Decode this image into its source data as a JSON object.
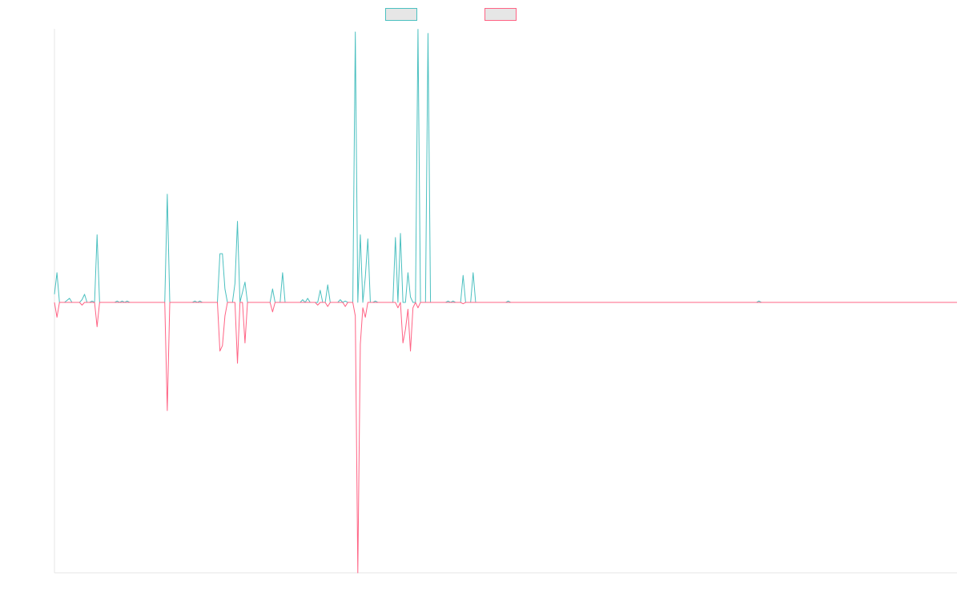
{
  "chart_data": {
    "type": "line",
    "title": "",
    "xlabel": "",
    "ylabel": "",
    "ylim": [
      -1,
      1
    ],
    "xlim": [
      0,
      360
    ],
    "grid": false,
    "legend_position": "top-center",
    "series": [
      {
        "color": "#4bc0c0",
        "fill": "#e6e6e6",
        "points": [
          [
            0,
            0.03
          ],
          [
            1,
            0.11
          ],
          [
            2,
            0
          ],
          [
            4,
            0
          ],
          [
            6,
            0.015
          ],
          [
            7,
            0
          ],
          [
            9,
            0
          ],
          [
            10,
            0
          ],
          [
            11,
            0.01
          ],
          [
            12,
            0.03
          ],
          [
            13,
            0
          ],
          [
            14,
            0
          ],
          [
            15,
            0.005
          ],
          [
            16,
            0
          ],
          [
            17,
            0.25
          ],
          [
            18,
            0
          ],
          [
            19,
            0
          ],
          [
            24,
            0
          ],
          [
            25,
            0.005
          ],
          [
            26,
            0
          ],
          [
            27,
            0.005
          ],
          [
            28,
            0
          ],
          [
            29,
            0.005
          ],
          [
            30,
            0
          ],
          [
            44,
            0
          ],
          [
            45,
            0.4
          ],
          [
            46,
            0
          ],
          [
            55,
            0
          ],
          [
            56,
            0.005
          ],
          [
            57,
            0
          ],
          [
            58,
            0.005
          ],
          [
            59,
            0
          ],
          [
            65,
            0
          ],
          [
            66,
            0.18
          ],
          [
            67,
            0.18
          ],
          [
            68,
            0.05
          ],
          [
            69,
            0
          ],
          [
            71,
            0
          ],
          [
            72,
            0.07
          ],
          [
            73,
            0.3
          ],
          [
            74,
            0
          ],
          [
            76,
            0.075
          ],
          [
            77,
            0
          ],
          [
            86,
            0
          ],
          [
            87,
            0.05
          ],
          [
            88,
            0
          ],
          [
            90,
            0
          ],
          [
            91,
            0.11
          ],
          [
            92,
            0
          ],
          [
            98,
            0
          ],
          [
            99,
            0.01
          ],
          [
            100,
            0
          ],
          [
            101,
            0.015
          ],
          [
            102,
            0
          ],
          [
            103,
            0
          ],
          [
            105,
            0
          ],
          [
            106,
            0.045
          ],
          [
            107,
            0
          ],
          [
            108,
            0
          ],
          [
            109,
            0.065
          ],
          [
            110,
            0
          ],
          [
            111,
            0
          ],
          [
            113,
            0
          ],
          [
            114,
            0.01
          ],
          [
            115,
            0
          ],
          [
            116,
            0.005
          ],
          [
            117,
            0
          ],
          [
            118,
            0
          ],
          [
            119,
            0
          ],
          [
            120,
            1
          ],
          [
            121,
            0
          ],
          [
            122,
            0.25
          ],
          [
            123,
            0
          ],
          [
            124,
            0.095
          ],
          [
            125,
            0.235
          ],
          [
            126,
            0
          ],
          [
            127,
            0
          ],
          [
            128,
            0.005
          ],
          [
            129,
            0
          ],
          [
            135,
            0
          ],
          [
            136,
            0.24
          ],
          [
            137,
            0
          ],
          [
            138,
            0.255
          ],
          [
            139,
            0
          ],
          [
            140,
            0
          ],
          [
            141,
            0.11
          ],
          [
            142,
            0.02
          ],
          [
            143,
            0
          ],
          [
            144,
            0
          ],
          [
            145,
            1.01
          ],
          [
            146,
            0
          ],
          [
            147,
            0
          ],
          [
            148,
            0
          ],
          [
            149,
            0.995
          ],
          [
            150,
            0
          ],
          [
            156,
            0
          ],
          [
            157,
            0.005
          ],
          [
            158,
            0
          ],
          [
            159,
            0.005
          ],
          [
            160,
            0
          ],
          [
            162,
            0
          ],
          [
            163,
            0.1
          ],
          [
            164,
            0
          ],
          [
            166,
            0
          ],
          [
            167,
            0.11
          ],
          [
            168,
            0
          ],
          [
            172,
            0
          ],
          [
            180,
            0
          ],
          [
            181,
            0.005
          ],
          [
            182,
            0
          ],
          [
            280,
            0
          ],
          [
            281,
            0.005
          ],
          [
            282,
            0
          ],
          [
            360,
            0
          ]
        ]
      },
      {
        "color": "#ff6384",
        "fill": "#e6e6e6",
        "points": [
          [
            0,
            0
          ],
          [
            1,
            -0.055
          ],
          [
            2,
            0
          ],
          [
            4,
            0
          ],
          [
            10,
            0
          ],
          [
            11,
            -0.01
          ],
          [
            12,
            0
          ],
          [
            16,
            0
          ],
          [
            17,
            -0.09
          ],
          [
            18,
            0
          ],
          [
            44,
            0
          ],
          [
            45,
            -0.4
          ],
          [
            46,
            0
          ],
          [
            65,
            0
          ],
          [
            66,
            -0.18
          ],
          [
            67,
            -0.16
          ],
          [
            68,
            -0.05
          ],
          [
            69,
            0
          ],
          [
            72,
            0
          ],
          [
            73,
            -0.225
          ],
          [
            74,
            0
          ],
          [
            75,
            0
          ],
          [
            76,
            -0.15
          ],
          [
            77,
            0
          ],
          [
            86,
            0
          ],
          [
            87,
            -0.035
          ],
          [
            88,
            0
          ],
          [
            104,
            0
          ],
          [
            105,
            -0.01
          ],
          [
            106,
            0
          ],
          [
            108,
            0
          ],
          [
            109,
            -0.015
          ],
          [
            110,
            0
          ],
          [
            115,
            0
          ],
          [
            116,
            -0.015
          ],
          [
            117,
            0
          ],
          [
            118,
            0
          ],
          [
            119,
            0
          ],
          [
            120,
            -0.05
          ],
          [
            121,
            -1.0
          ],
          [
            122,
            -0.155
          ],
          [
            123,
            -0.02
          ],
          [
            124,
            -0.055
          ],
          [
            125,
            0
          ],
          [
            127,
            0
          ],
          [
            136,
            0
          ],
          [
            137,
            -0.02
          ],
          [
            138,
            0
          ],
          [
            139,
            -0.15
          ],
          [
            140,
            -0.1
          ],
          [
            141,
            -0.025
          ],
          [
            142,
            -0.18
          ],
          [
            143,
            -0.02
          ],
          [
            144,
            0
          ],
          [
            145,
            -0.02
          ],
          [
            146,
            0
          ],
          [
            147,
            0
          ],
          [
            162,
            0
          ],
          [
            163,
            -0.005
          ],
          [
            164,
            0
          ],
          [
            360,
            0
          ]
        ]
      }
    ]
  }
}
